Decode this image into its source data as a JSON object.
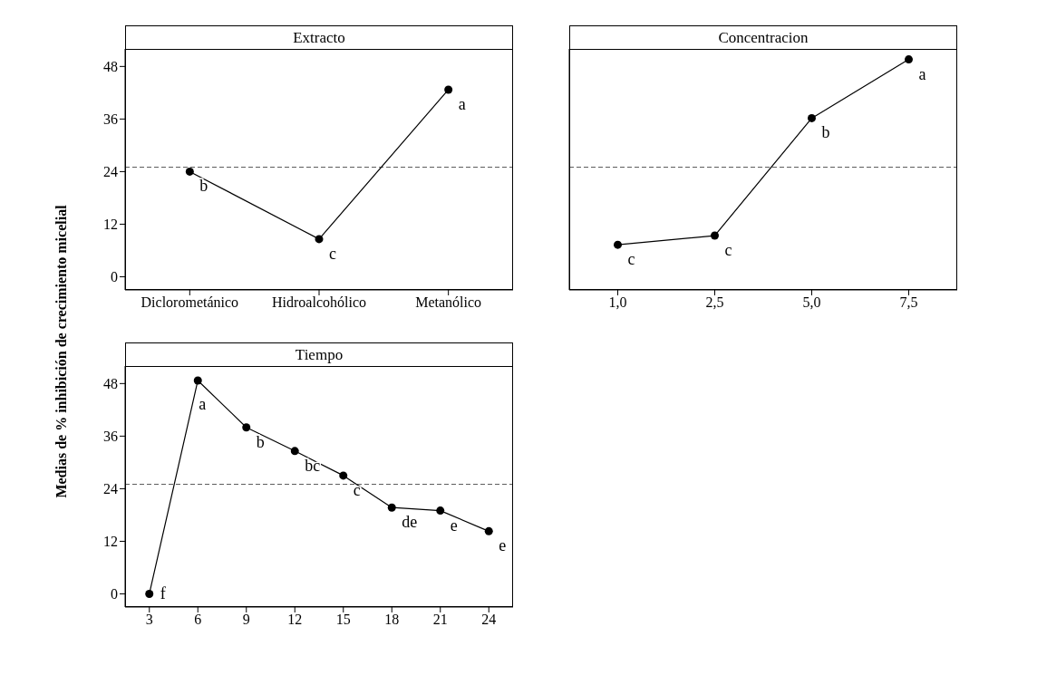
{
  "chart_data": [
    {
      "type": "line",
      "title": "Extracto",
      "ylabel": "Medias de % inhibición de crecimiento micelial",
      "categories": [
        "Diclorometánico",
        "Hidroalcohólico",
        "Metanólico"
      ],
      "values": [
        24.0,
        8.6,
        42.7
      ],
      "color": "#000000",
      "marker": "circle",
      "ylim": [
        -3,
        52
      ],
      "yticks": [
        0,
        12,
        24,
        36,
        48
      ],
      "grid": false,
      "ref_lines": [
        {
          "axis": "y",
          "value": 25,
          "color": "#555555",
          "line_style": "dashed"
        }
      ],
      "annotations": [
        {
          "text": "b",
          "x": "Diclorometánico",
          "y": 24.0
        },
        {
          "text": "c",
          "x": "Hidroalcohólico",
          "y": 8.6
        },
        {
          "text": "a",
          "x": "Metanólico",
          "y": 42.7
        }
      ]
    },
    {
      "type": "line",
      "title": "Concentracion",
      "categories": [
        "1,0",
        "2,5",
        "5,0",
        "7,5"
      ],
      "values": [
        7.3,
        9.4,
        36.2,
        49.6
      ],
      "color": "#000000",
      "marker": "circle",
      "ylim": [
        -3,
        52
      ],
      "grid": false,
      "tick_labels": "x",
      "ref_lines": [
        {
          "axis": "y",
          "value": 25,
          "color": "#555555",
          "line_style": "dashed"
        }
      ],
      "annotations": [
        {
          "text": "c",
          "x": "1,0",
          "y": 7.3
        },
        {
          "text": "c",
          "x": "2,5",
          "y": 9.4
        },
        {
          "text": "b",
          "x": "5,0",
          "y": 36.2
        },
        {
          "text": "a",
          "x": "7,5",
          "y": 49.6
        }
      ]
    },
    {
      "type": "line",
      "title": "Tiempo",
      "categories": [
        "3",
        "6",
        "9",
        "12",
        "15",
        "18",
        "21",
        "24"
      ],
      "values": [
        0.0,
        48.7,
        38.0,
        32.6,
        27.0,
        19.7,
        19.0,
        14.3
      ],
      "color": "#000000",
      "marker": "circle",
      "ylim": [
        -3,
        52
      ],
      "yticks": [
        0,
        12,
        24,
        36,
        48
      ],
      "grid": false,
      "ref_lines": [
        {
          "axis": "y",
          "value": 25,
          "color": "#555555",
          "line_style": "dashed"
        }
      ],
      "annotations": [
        {
          "text": "f",
          "x": "3",
          "y": 0.0
        },
        {
          "text": "a",
          "x": "6",
          "y": 48.7
        },
        {
          "text": "b",
          "x": "9",
          "y": 38.0
        },
        {
          "text": "bc",
          "x": "12",
          "y": 32.6
        },
        {
          "text": "c",
          "x": "15",
          "y": 27.0
        },
        {
          "text": "de",
          "x": "18",
          "y": 19.7
        },
        {
          "text": "e",
          "x": "21",
          "y": 19.0
        },
        {
          "text": "e",
          "x": "24",
          "y": 14.3
        }
      ]
    }
  ]
}
